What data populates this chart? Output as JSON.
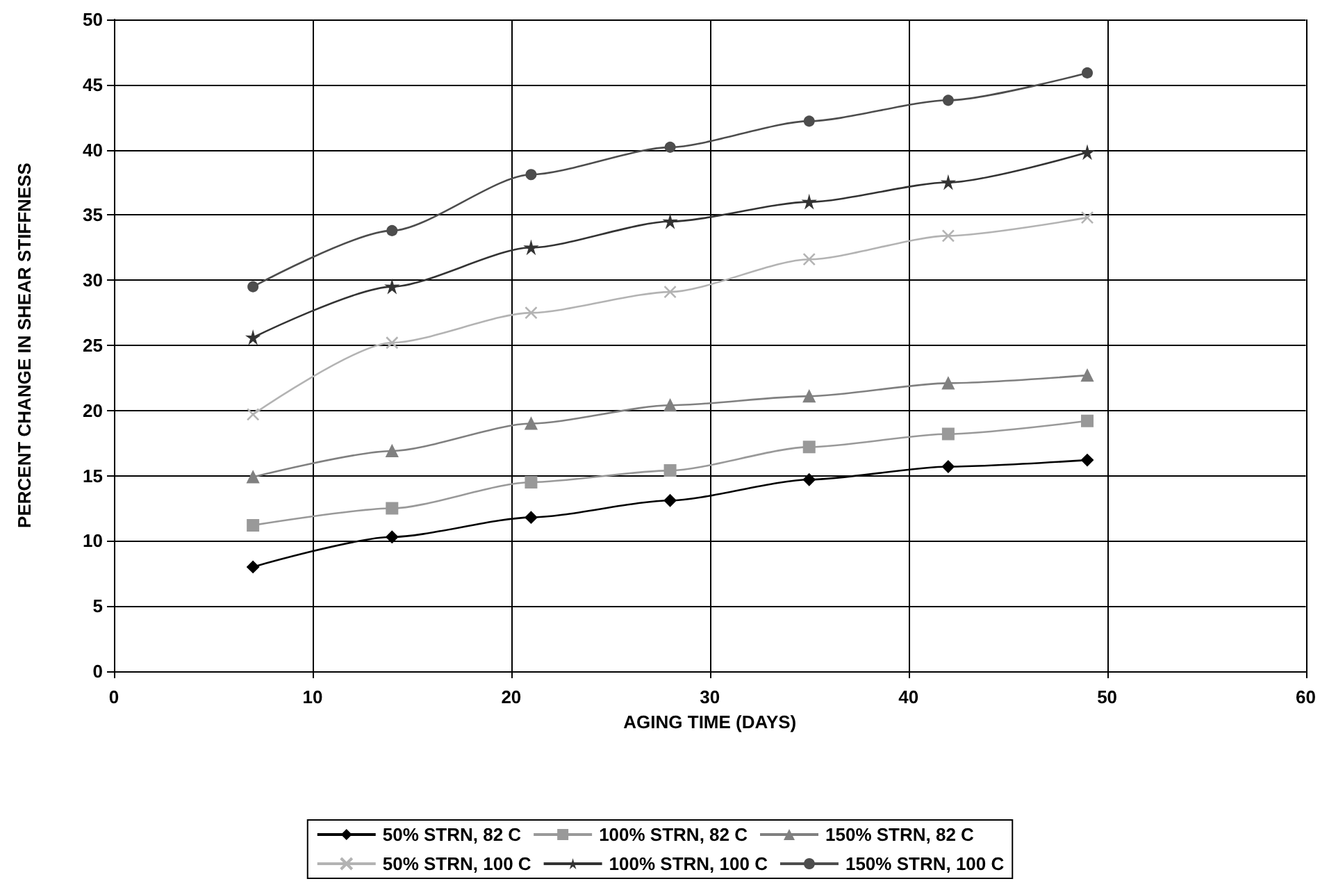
{
  "chart_data": {
    "type": "line",
    "xlabel": "AGING TIME (DAYS)",
    "ylabel": "PERCENT CHANGE IN SHEAR STIFFNESS",
    "x": [
      7,
      14,
      21,
      28,
      35,
      42,
      49
    ],
    "xlim": [
      0,
      60
    ],
    "xticks": [
      0,
      10,
      20,
      30,
      40,
      50,
      60
    ],
    "ylim": [
      0,
      50
    ],
    "yticks": [
      0,
      5,
      10,
      15,
      20,
      25,
      30,
      35,
      40,
      45,
      50
    ],
    "grid": true,
    "legend": "bottom",
    "line_style": "solid",
    "series": [
      {
        "name": "50% STRN, 82 C",
        "color": "#000000",
        "marker": "diamond",
        "values": [
          8.0,
          10.3,
          11.8,
          13.1,
          14.7,
          15.7,
          16.2
        ]
      },
      {
        "name": "100% STRN, 82 C",
        "color": "#999999",
        "marker": "square",
        "values": [
          11.2,
          12.5,
          14.5,
          15.4,
          17.2,
          18.2,
          19.2
        ]
      },
      {
        "name": "150% STRN, 82 C",
        "color": "#808080",
        "marker": "triangle",
        "values": [
          14.9,
          16.9,
          19.0,
          20.4,
          21.1,
          22.1,
          22.7
        ]
      },
      {
        "name": "50% STRN, 100 C",
        "color": "#b3b3b3",
        "marker": "cross",
        "values": [
          19.7,
          25.2,
          27.5,
          29.1,
          31.6,
          33.4,
          34.8
        ]
      },
      {
        "name": "100% STRN, 100 C",
        "color": "#333333",
        "marker": "star",
        "values": [
          25.6,
          29.5,
          32.5,
          34.5,
          36.0,
          37.5,
          39.8
        ]
      },
      {
        "name": "150% STRN, 100 C",
        "color": "#4d4d4d",
        "marker": "circle",
        "values": [
          29.5,
          33.8,
          38.1,
          40.2,
          42.2,
          43.8,
          45.9
        ]
      }
    ]
  }
}
